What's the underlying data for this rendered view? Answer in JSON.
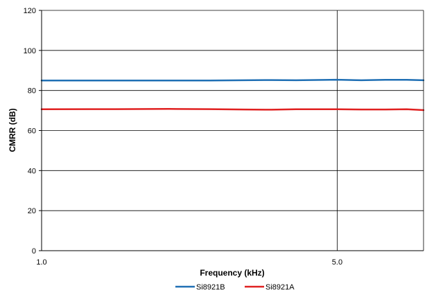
{
  "chart_data": {
    "type": "line",
    "title": "",
    "xlabel": "Frequency (kHz)",
    "ylabel": "CMRR (dB)",
    "x_scale": "log",
    "xlim": [
      1.0,
      8.0
    ],
    "ylim": [
      0,
      120
    ],
    "y_ticks": [
      0,
      20,
      40,
      60,
      80,
      100,
      120
    ],
    "x_ticks": [
      1.0,
      5.0
    ],
    "x_tick_labels": [
      "1.0",
      "5.0"
    ],
    "grid": true,
    "legend_position": "bottom-center",
    "series": [
      {
        "name": "Si8921B",
        "color": "#1f6fb4",
        "x": [
          1.0,
          1.5,
          2.0,
          2.5,
          3.0,
          3.5,
          4.0,
          5.0,
          5.7,
          6.5,
          7.3,
          8.0
        ],
        "y": [
          85.0,
          85.0,
          85.0,
          85.0,
          85.1,
          85.2,
          85.1,
          85.4,
          85.1,
          85.3,
          85.3,
          85.1
        ]
      },
      {
        "name": "Si8921A",
        "color": "#e02020",
        "x": [
          1.0,
          1.5,
          2.0,
          2.5,
          3.0,
          3.5,
          4.0,
          5.0,
          5.7,
          6.5,
          7.3,
          8.0
        ],
        "y": [
          70.6,
          70.7,
          70.8,
          70.7,
          70.5,
          70.4,
          70.6,
          70.6,
          70.5,
          70.5,
          70.6,
          70.2
        ]
      }
    ]
  }
}
